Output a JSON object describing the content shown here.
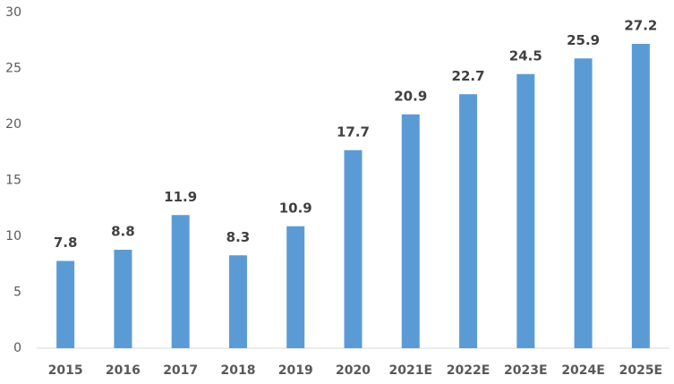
{
  "chart_data": {
    "type": "bar",
    "categories": [
      "2015",
      "2016",
      "2017",
      "2018",
      "2019",
      "2020",
      "2021E",
      "2022E",
      "2023E",
      "2024E",
      "2025E"
    ],
    "values": [
      7.8,
      8.8,
      11.9,
      8.3,
      10.9,
      17.7,
      20.9,
      22.7,
      24.5,
      25.9,
      27.2
    ],
    "color": "#5b9bd5",
    "ylim": [
      0,
      30
    ],
    "yticks": [
      0,
      5,
      10,
      15,
      20,
      25,
      30
    ],
    "grid": false
  }
}
